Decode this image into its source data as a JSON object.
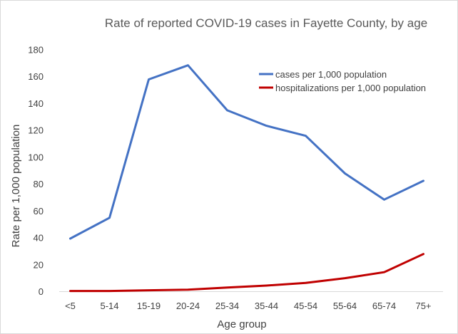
{
  "chart_data": {
    "type": "line",
    "title": "Rate of reported COVID-19 cases in Fayette County, by age",
    "xlabel": "Age group",
    "ylabel": "Rate per 1,000 population",
    "categories": [
      "<5",
      "5-14",
      "15-19",
      "20-24",
      "25-34",
      "35-44",
      "45-54",
      "55-64",
      "65-74",
      "75+"
    ],
    "ylim": [
      0,
      180
    ],
    "yticks": [
      "0",
      "20",
      "40",
      "60",
      "80",
      "100",
      "120",
      "140",
      "160",
      "180"
    ],
    "grid": false,
    "legend_position": "top-right",
    "series": [
      {
        "name": "cases per 1,000 population",
        "color": "#4472c4",
        "values": [
          39.5,
          55,
          158,
          168.5,
          135,
          123.5,
          116,
          88,
          68.5,
          82.5
        ]
      },
      {
        "name": "hospitalizations per 1,000 population",
        "color": "#c00000",
        "values": [
          0.5,
          0.5,
          1,
          1.5,
          3,
          4.5,
          6.5,
          10,
          14.5,
          28
        ]
      }
    ]
  }
}
